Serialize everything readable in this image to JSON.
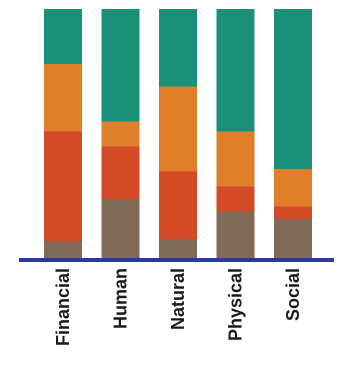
{
  "chart_data": {
    "type": "bar",
    "stacked": true,
    "title": "",
    "xlabel": "",
    "ylabel": "",
    "ylim": [
      0,
      100
    ],
    "grid": false,
    "legend": "none",
    "categories": [
      "Financial",
      "Human",
      "Natural",
      "Physical",
      "Social"
    ],
    "series": [
      {
        "color": "#7f6b57",
        "values": [
          7,
          24,
          8,
          19,
          16
        ]
      },
      {
        "color": "#d24b26",
        "values": [
          44,
          21,
          27,
          10,
          5
        ]
      },
      {
        "color": "#df7f2a",
        "values": [
          27,
          10,
          34,
          22,
          15
        ]
      },
      {
        "color": "#1a9079",
        "values": [
          22,
          45,
          31,
          49,
          64
        ]
      }
    ],
    "axis_color": "#2b3a9a"
  }
}
